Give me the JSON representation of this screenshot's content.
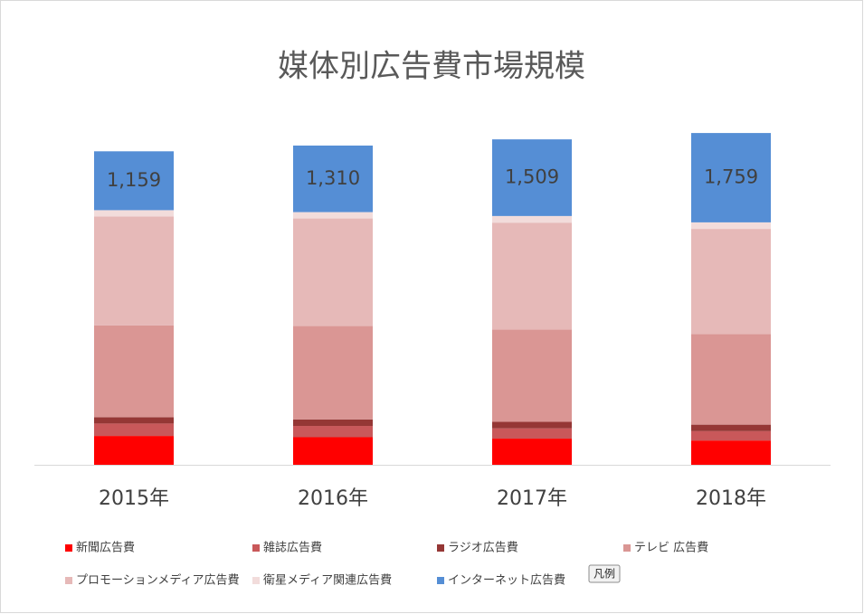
{
  "chart_data": {
    "type": "bar",
    "stacked": true,
    "title": "媒体別広告費市場規模",
    "categories": [
      "2015年",
      "2016年",
      "2017年",
      "2018年"
    ],
    "series": [
      {
        "name": "新聞広告費",
        "color": "#ff0000",
        "values": [
          568,
          543,
          515,
          478
        ]
      },
      {
        "name": "雑誌広告費",
        "color": "#c9585a",
        "values": [
          244,
          222,
          202,
          184
        ]
      },
      {
        "name": "ラジオ広告費",
        "color": "#953735",
        "values": [
          125,
          129,
          129,
          128
        ]
      },
      {
        "name": "テレビ 広告費",
        "color": "#da9694",
        "values": [
          1809,
          1837,
          1818,
          1785
        ]
      },
      {
        "name": "プロモーションメディア広告費",
        "color": "#e6b9b8",
        "values": [
          2142,
          2118,
          2103,
          2069
        ]
      },
      {
        "name": "衛星メディア関連広告費",
        "color": "#f2dcdb",
        "values": [
          124,
          125,
          130,
          128
        ]
      },
      {
        "name": "インターネット広告費",
        "color": "#558ed5",
        "values": [
          1159,
          1310,
          1509,
          1759
        ],
        "value_labels": [
          "1,159",
          "1,310",
          "1,509",
          "1,759"
        ]
      }
    ],
    "ylim": [
      0,
      7000
    ],
    "legend": "bottom",
    "legend_button": "凡例"
  }
}
